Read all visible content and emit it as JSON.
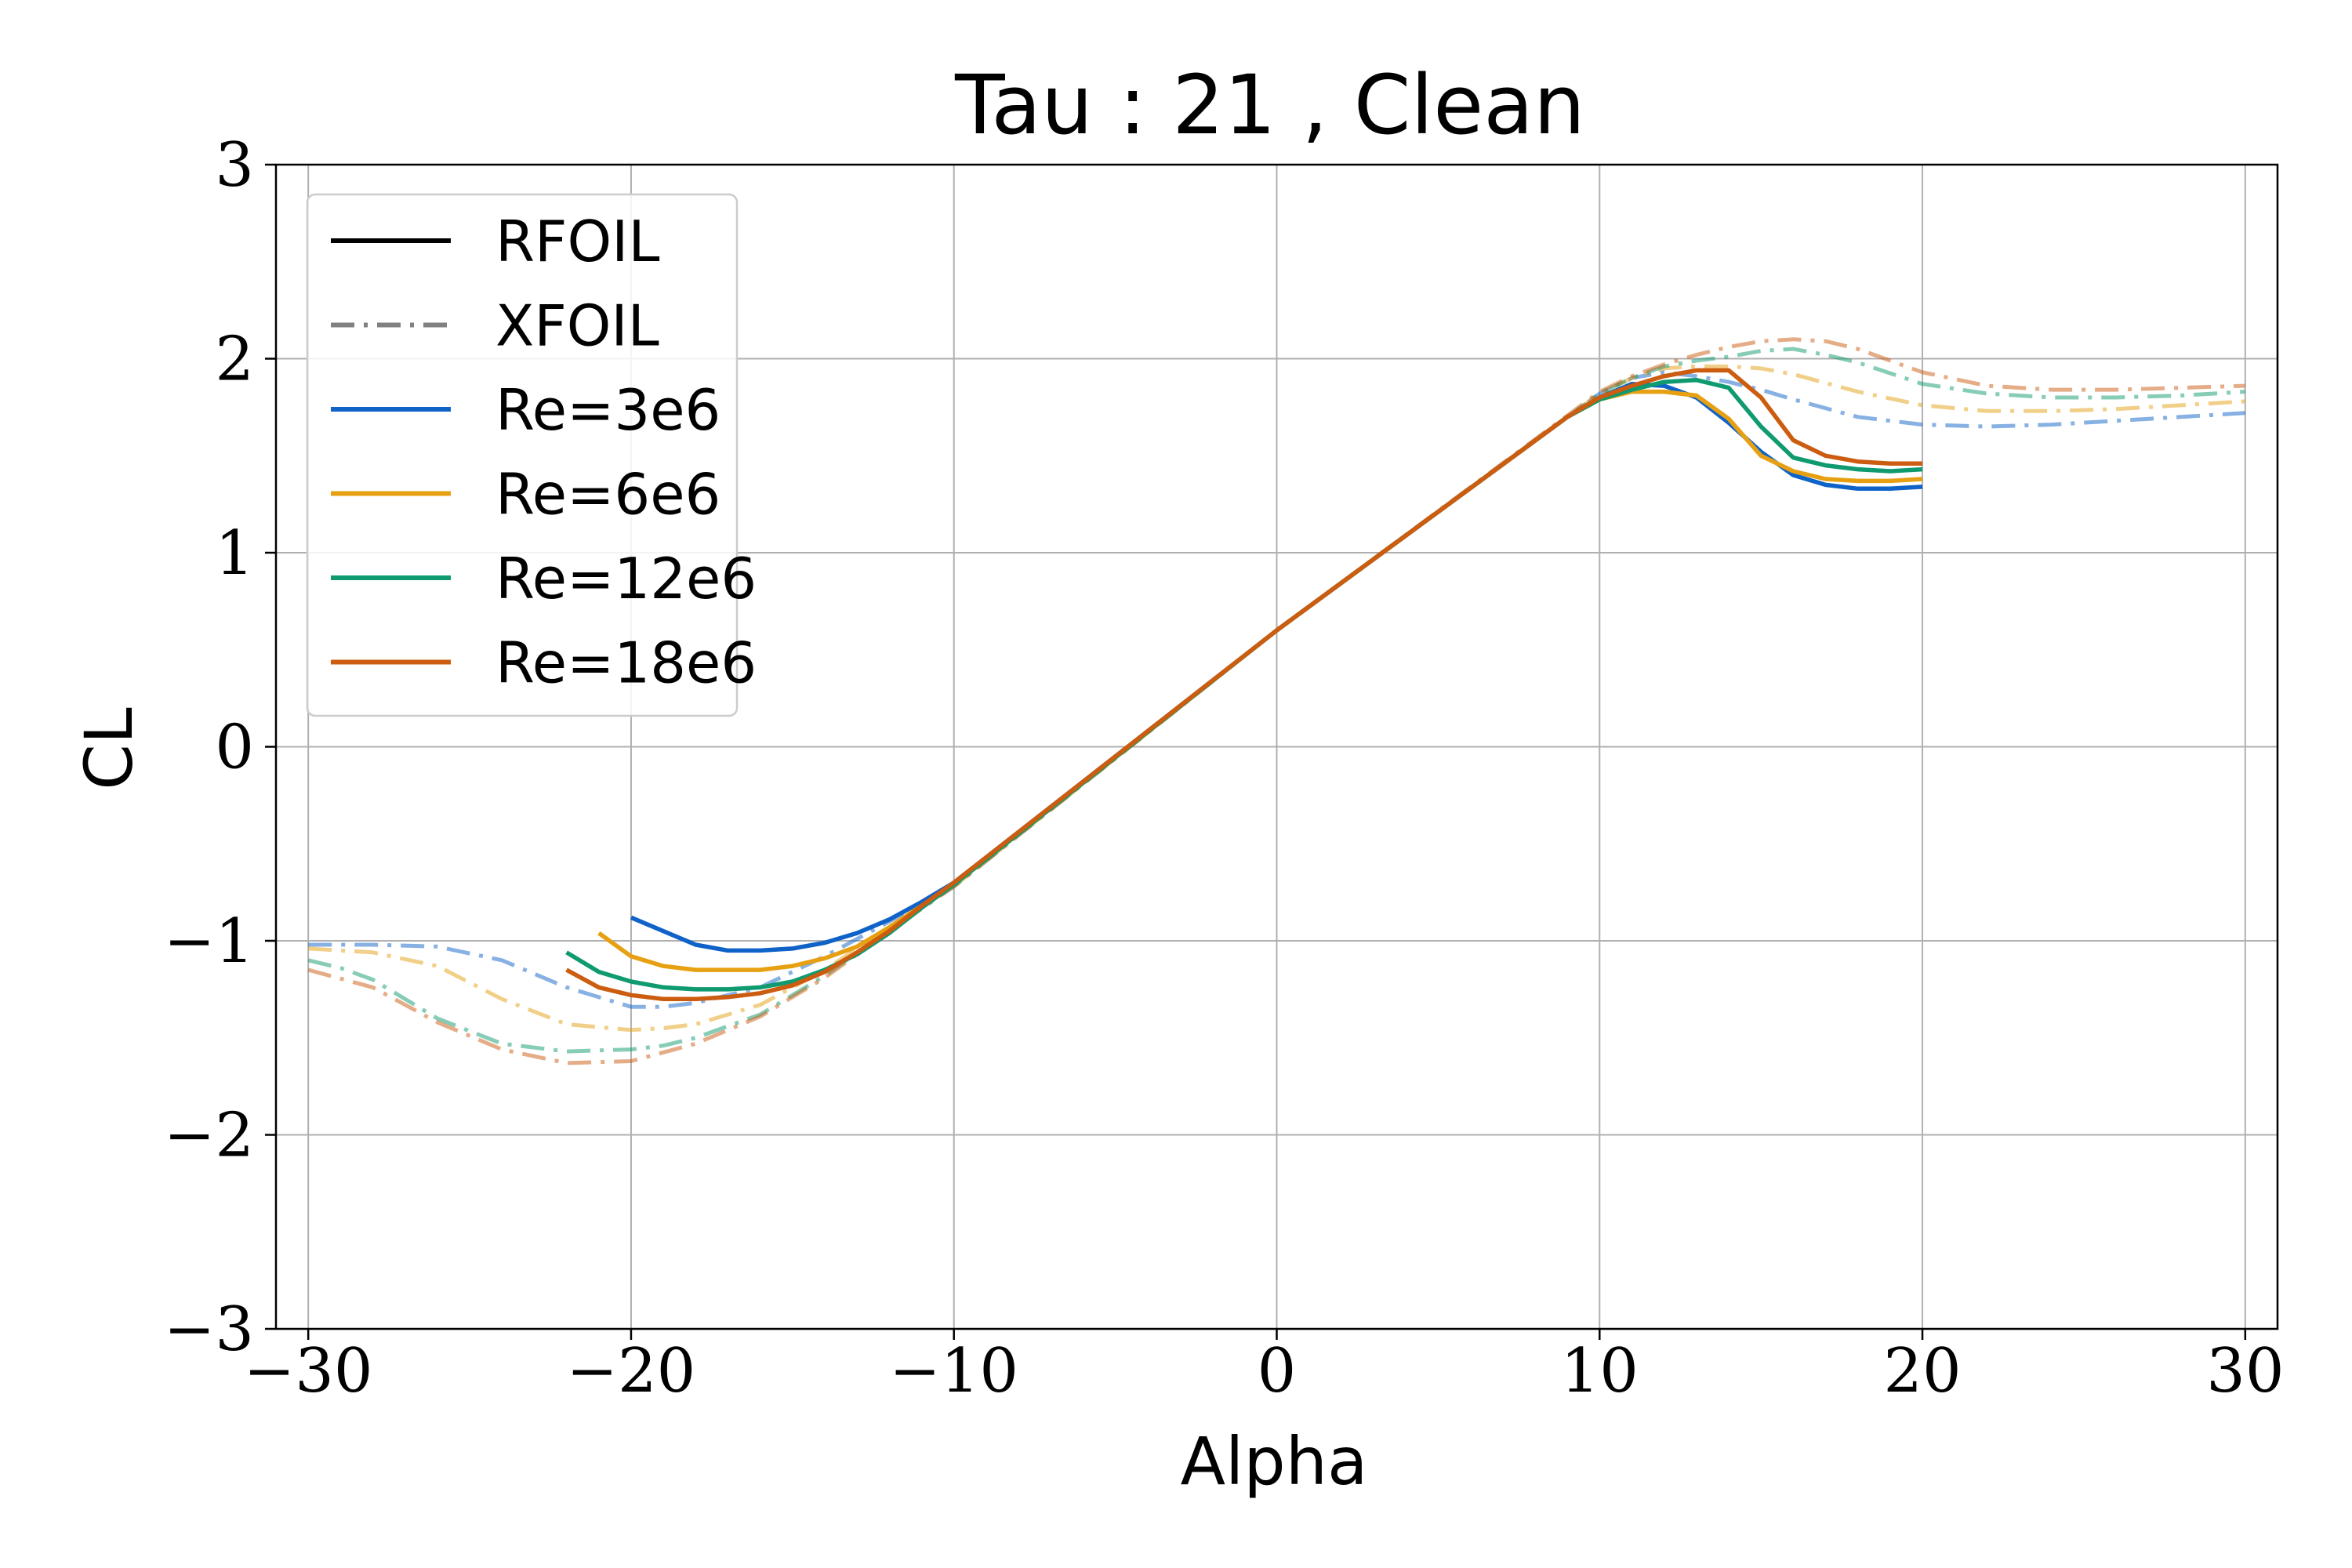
{
  "chart_data": {
    "type": "line",
    "title": "Tau : 21 , Clean",
    "xlabel": "Alpha",
    "ylabel": "CL",
    "xlim": [
      -31,
      31
    ],
    "ylim": [
      -3,
      3
    ],
    "xticks": [
      -30,
      -20,
      -10,
      0,
      10,
      20,
      30
    ],
    "yticks": [
      -3,
      -2,
      -1,
      0,
      1,
      2,
      3
    ],
    "xtick_labels": [
      "−30",
      "−20",
      "−10",
      "0",
      "10",
      "20",
      "30"
    ],
    "ytick_labels": [
      "−3",
      "−2",
      "−1",
      "0",
      "1",
      "2",
      "3"
    ],
    "grid": true,
    "legend_position": "top-left",
    "legend": [
      {
        "label": "RFOIL",
        "color": "#000000",
        "style": "solid"
      },
      {
        "label": "XFOIL",
        "color": "#808080",
        "style": "dashdot"
      },
      {
        "label": "Re=3e6",
        "color": "#0f62c8",
        "style": "solid"
      },
      {
        "label": "Re=6e6",
        "color": "#e6a012",
        "style": "solid"
      },
      {
        "label": "Re=12e6",
        "color": "#0f9a6f",
        "style": "solid"
      },
      {
        "label": "Re=18e6",
        "color": "#cc5c0f",
        "style": "solid"
      }
    ],
    "series": [
      {
        "name": "Re=3e6",
        "method": "RFOIL",
        "color": "#0f62c8",
        "x": [
          -20,
          -18,
          -17,
          -16,
          -15,
          -14,
          -13,
          -12,
          -11,
          -10,
          0,
          9,
          10,
          11,
          12,
          13,
          14,
          15,
          16,
          17,
          18,
          19,
          20
        ],
        "y": [
          -0.88,
          -1.02,
          -1.05,
          -1.05,
          -1.04,
          -1.01,
          -0.96,
          -0.89,
          -0.8,
          -0.7,
          0.6,
          1.7,
          1.8,
          1.87,
          1.86,
          1.8,
          1.67,
          1.52,
          1.4,
          1.35,
          1.33,
          1.33,
          1.34
        ]
      },
      {
        "name": "Re=6e6",
        "method": "RFOIL",
        "color": "#e6a012",
        "x": [
          -21,
          -20,
          -19,
          -18,
          -17,
          -16,
          -15,
          -14,
          -13,
          -12,
          -11,
          -10,
          0,
          9,
          10,
          11,
          12,
          13,
          14,
          15,
          16,
          17,
          18,
          19,
          20
        ],
        "y": [
          -0.96,
          -1.08,
          -1.13,
          -1.15,
          -1.15,
          -1.15,
          -1.13,
          -1.09,
          -1.03,
          -0.93,
          -0.82,
          -0.71,
          0.6,
          1.7,
          1.79,
          1.83,
          1.83,
          1.81,
          1.69,
          1.5,
          1.42,
          1.38,
          1.37,
          1.37,
          1.38
        ]
      },
      {
        "name": "Re=12e6",
        "method": "RFOIL",
        "color": "#0f9a6f",
        "x": [
          -22,
          -21,
          -20,
          -19,
          -18,
          -17,
          -16,
          -15,
          -14,
          -13,
          -12,
          -11,
          -10,
          0,
          9,
          10,
          11,
          12,
          13,
          14,
          15,
          16,
          17,
          18,
          19,
          20
        ],
        "y": [
          -1.06,
          -1.16,
          -1.21,
          -1.24,
          -1.25,
          -1.25,
          -1.24,
          -1.21,
          -1.15,
          -1.07,
          -0.96,
          -0.83,
          -0.71,
          0.6,
          1.7,
          1.79,
          1.84,
          1.88,
          1.89,
          1.85,
          1.65,
          1.49,
          1.45,
          1.43,
          1.42,
          1.43
        ]
      },
      {
        "name": "Re=18e6",
        "method": "RFOIL",
        "color": "#cc5c0f",
        "x": [
          -22,
          -21,
          -20,
          -19,
          -18,
          -17,
          -16,
          -15,
          -14,
          -13,
          -12,
          -11,
          -10,
          0,
          9,
          10,
          11,
          12,
          13,
          14,
          15,
          16,
          17,
          18,
          19,
          20
        ],
        "y": [
          -1.15,
          -1.24,
          -1.28,
          -1.3,
          -1.3,
          -1.29,
          -1.27,
          -1.23,
          -1.16,
          -1.06,
          -0.95,
          -0.82,
          -0.7,
          0.6,
          1.7,
          1.8,
          1.86,
          1.91,
          1.94,
          1.94,
          1.8,
          1.58,
          1.5,
          1.47,
          1.46,
          1.46
        ]
      },
      {
        "name": "Re=3e6",
        "method": "XFOIL",
        "color": "#0f62c8",
        "x": [
          -30,
          -28,
          -26,
          -24,
          -22,
          -20,
          -19,
          -18,
          -16,
          -14,
          -12,
          -10,
          0,
          10,
          11,
          12,
          13,
          14,
          15,
          16,
          18,
          20,
          22,
          24,
          26,
          28,
          30
        ],
        "y": [
          -1.02,
          -1.02,
          -1.03,
          -1.1,
          -1.24,
          -1.34,
          -1.34,
          -1.32,
          -1.24,
          -1.08,
          -0.9,
          -0.71,
          0.6,
          1.82,
          1.9,
          1.93,
          1.91,
          1.88,
          1.84,
          1.79,
          1.7,
          1.66,
          1.65,
          1.66,
          1.68,
          1.7,
          1.72
        ]
      },
      {
        "name": "Re=6e6",
        "method": "XFOIL",
        "color": "#e6a012",
        "x": [
          -30,
          -28,
          -26,
          -24,
          -22,
          -20,
          -19,
          -18,
          -16,
          -14,
          -12,
          -10,
          0,
          10,
          11,
          12,
          13,
          14,
          15,
          16,
          18,
          20,
          22,
          24,
          26,
          28,
          30
        ],
        "y": [
          -1.04,
          -1.06,
          -1.13,
          -1.3,
          -1.43,
          -1.46,
          -1.45,
          -1.43,
          -1.33,
          -1.15,
          -0.93,
          -0.72,
          0.6,
          1.82,
          1.9,
          1.95,
          1.96,
          1.96,
          1.95,
          1.92,
          1.83,
          1.76,
          1.73,
          1.73,
          1.74,
          1.76,
          1.78
        ]
      },
      {
        "name": "Re=12e6",
        "method": "XFOIL",
        "color": "#0f9a6f",
        "x": [
          -30,
          -29,
          -28,
          -26,
          -24,
          -22,
          -20,
          -19,
          -18,
          -16,
          -14,
          -12,
          -10,
          0,
          10,
          11,
          12,
          13,
          14,
          15,
          16,
          17,
          18,
          20,
          22,
          24,
          26,
          28,
          30
        ],
        "y": [
          -1.1,
          -1.14,
          -1.2,
          -1.4,
          -1.53,
          -1.57,
          -1.56,
          -1.54,
          -1.5,
          -1.38,
          -1.18,
          -0.94,
          -0.72,
          0.6,
          1.82,
          1.9,
          1.96,
          1.99,
          2.01,
          2.04,
          2.05,
          2.02,
          1.98,
          1.87,
          1.82,
          1.8,
          1.8,
          1.81,
          1.83
        ]
      },
      {
        "name": "Re=18e6",
        "method": "XFOIL",
        "color": "#cc5c0f",
        "x": [
          -30,
          -28,
          -26,
          -24,
          -22,
          -20,
          -18,
          -16,
          -14,
          -12,
          -10,
          0,
          10,
          11,
          12,
          13,
          14,
          15,
          16,
          17,
          18,
          20,
          22,
          24,
          26,
          28,
          30
        ],
        "y": [
          -1.15,
          -1.24,
          -1.42,
          -1.56,
          -1.63,
          -1.62,
          -1.53,
          -1.39,
          -1.19,
          -0.95,
          -0.72,
          0.6,
          1.83,
          1.91,
          1.97,
          2.02,
          2.06,
          2.09,
          2.1,
          2.09,
          2.05,
          1.93,
          1.86,
          1.84,
          1.84,
          1.85,
          1.86
        ]
      }
    ]
  }
}
